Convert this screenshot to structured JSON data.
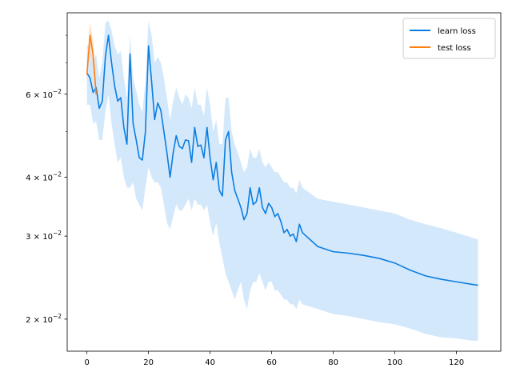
{
  "chart_data": {
    "type": "line",
    "title": "",
    "xlabel": "",
    "ylabel": "",
    "yscale": "log",
    "xlim": [
      -6.4,
      134.4
    ],
    "ylim": [
      0.0171,
      0.0893
    ],
    "grid": false,
    "legend_position": "top-right",
    "x_ticks": [
      0,
      20,
      40,
      60,
      80,
      100,
      120
    ],
    "x_tick_labels": [
      "0",
      "20",
      "40",
      "60",
      "80",
      "100",
      "120"
    ],
    "y_ticks": [
      0.02,
      0.03,
      0.04,
      0.06
    ],
    "y_tick_labels": [
      {
        "mantissa": "2",
        "exponent": "−2"
      },
      {
        "mantissa": "3",
        "exponent": "−2"
      },
      {
        "mantissa": "4",
        "exponent": "−2"
      },
      {
        "mantissa": "6",
        "exponent": "−2"
      }
    ],
    "series": [
      {
        "name": "learn loss",
        "color": "#0a7ee0",
        "band_color": "#cce4fb",
        "x": [
          0,
          1,
          2,
          3,
          4,
          5,
          6,
          7,
          8,
          9,
          10,
          11,
          12,
          13,
          14,
          15,
          16,
          17,
          18,
          19,
          20,
          21,
          22,
          23,
          24,
          25,
          26,
          27,
          28,
          29,
          30,
          31,
          32,
          33,
          34,
          35,
          36,
          37,
          38,
          39,
          40,
          41,
          42,
          43,
          44,
          45,
          46,
          47,
          48,
          49,
          50,
          51,
          52,
          53,
          54,
          55,
          56,
          57,
          58,
          59,
          60,
          61,
          62,
          63,
          64,
          65,
          66,
          67,
          68,
          69,
          70,
          75,
          80,
          85,
          90,
          95,
          100,
          105,
          110,
          115,
          120,
          125,
          127
        ],
        "y": [
          0.0665,
          0.065,
          0.0605,
          0.062,
          0.056,
          0.058,
          0.072,
          0.08,
          0.07,
          0.0625,
          0.058,
          0.059,
          0.051,
          0.047,
          0.073,
          0.052,
          0.048,
          0.044,
          0.0435,
          0.05,
          0.076,
          0.064,
          0.053,
          0.0575,
          0.0555,
          0.05,
          0.045,
          0.04,
          0.045,
          0.049,
          0.0465,
          0.046,
          0.048,
          0.0478,
          0.043,
          0.051,
          0.0465,
          0.0468,
          0.044,
          0.051,
          0.044,
          0.0395,
          0.043,
          0.0375,
          0.0365,
          0.048,
          0.05,
          0.041,
          0.0375,
          0.036,
          0.0345,
          0.0325,
          0.0335,
          0.038,
          0.035,
          0.0355,
          0.038,
          0.0345,
          0.0335,
          0.0352,
          0.0345,
          0.033,
          0.0335,
          0.0322,
          0.0305,
          0.031,
          0.03,
          0.0303,
          0.0292,
          0.0318,
          0.0305,
          0.0285,
          0.0278,
          0.0276,
          0.0273,
          0.0269,
          0.0263,
          0.0254,
          0.0247,
          0.0243,
          0.024,
          0.0237,
          0.0236
        ],
        "lower": [
          0.057,
          0.057,
          0.052,
          0.0525,
          0.048,
          0.048,
          0.055,
          0.06,
          0.052,
          0.047,
          0.043,
          0.044,
          0.04,
          0.038,
          0.038,
          0.039,
          0.036,
          0.035,
          0.034,
          0.038,
          0.042,
          0.04,
          0.039,
          0.039,
          0.038,
          0.035,
          0.032,
          0.031,
          0.033,
          0.035,
          0.034,
          0.034,
          0.035,
          0.036,
          0.034,
          0.036,
          0.035,
          0.035,
          0.034,
          0.035,
          0.032,
          0.03,
          0.032,
          0.029,
          0.027,
          0.025,
          0.024,
          0.023,
          0.022,
          0.023,
          0.024,
          0.022,
          0.021,
          0.023,
          0.024,
          0.024,
          0.025,
          0.024,
          0.023,
          0.024,
          0.024,
          0.023,
          0.023,
          0.0225,
          0.022,
          0.022,
          0.0215,
          0.0215,
          0.021,
          0.022,
          0.0215,
          0.021,
          0.0205,
          0.0203,
          0.02,
          0.0197,
          0.0195,
          0.0191,
          0.0186,
          0.0183,
          0.0182,
          0.018,
          0.018
        ],
        "upper": [
          0.076,
          0.077,
          0.07,
          0.073,
          0.065,
          0.07,
          0.085,
          0.086,
          0.082,
          0.076,
          0.073,
          0.074,
          0.065,
          0.059,
          0.08,
          0.065,
          0.061,
          0.057,
          0.055,
          0.064,
          0.086,
          0.08,
          0.07,
          0.072,
          0.07,
          0.065,
          0.059,
          0.053,
          0.058,
          0.062,
          0.059,
          0.057,
          0.06,
          0.059,
          0.056,
          0.062,
          0.057,
          0.057,
          0.054,
          0.062,
          0.057,
          0.05,
          0.053,
          0.047,
          0.047,
          0.059,
          0.059,
          0.05,
          0.047,
          0.045,
          0.043,
          0.041,
          0.042,
          0.046,
          0.044,
          0.044,
          0.046,
          0.043,
          0.042,
          0.043,
          0.042,
          0.041,
          0.041,
          0.04,
          0.039,
          0.039,
          0.038,
          0.038,
          0.037,
          0.0395,
          0.038,
          0.036,
          0.0355,
          0.035,
          0.0345,
          0.034,
          0.0335,
          0.0325,
          0.0318,
          0.0312,
          0.0305,
          0.0298,
          0.0295
        ]
      },
      {
        "name": "test loss",
        "color": "#ff7f0e",
        "band_color": "#ffd2ab",
        "x": [
          0,
          1,
          2,
          3
        ],
        "y": [
          0.066,
          0.08,
          0.073,
          0.06
        ],
        "lower": [
          0.064,
          0.076,
          0.068,
          0.058
        ],
        "upper": [
          0.069,
          0.085,
          0.077,
          0.062
        ]
      }
    ]
  }
}
